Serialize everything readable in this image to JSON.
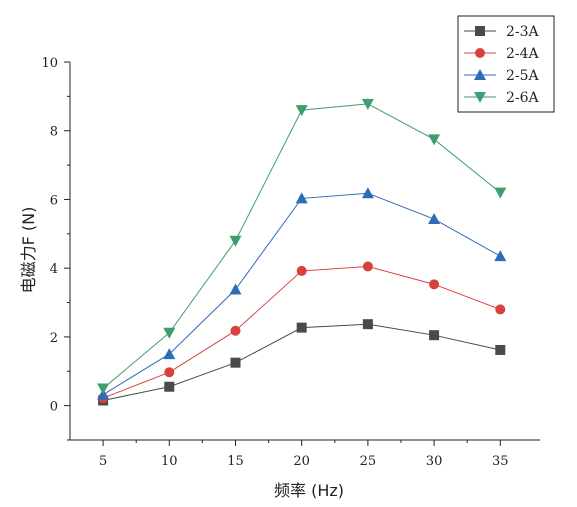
{
  "chart_data": {
    "type": "line",
    "xlabel": "频率 (Hz)",
    "ylabel": "电磁力F (N)",
    "x": [
      5,
      10,
      15,
      20,
      25,
      30,
      35
    ],
    "xlim": [
      2.5,
      38
    ],
    "ylim": [
      -1,
      10
    ],
    "xticks": [
      5,
      10,
      15,
      20,
      25,
      30,
      35
    ],
    "yticks": [
      0,
      2,
      4,
      6,
      8,
      10
    ],
    "grid": false,
    "legend_position": "top-right",
    "series": [
      {
        "name": "2-3A",
        "marker": "square",
        "color": "#4a4a4a",
        "values": [
          0.15,
          0.55,
          1.25,
          2.27,
          2.37,
          2.05,
          1.62
        ]
      },
      {
        "name": "2-4A",
        "marker": "circle",
        "color": "#d9413f",
        "values": [
          0.22,
          0.97,
          2.18,
          3.92,
          4.05,
          3.53,
          2.8
        ]
      },
      {
        "name": "2-5A",
        "marker": "triangle-up",
        "color": "#2f6cb8",
        "values": [
          0.32,
          1.5,
          3.38,
          6.03,
          6.18,
          5.43,
          4.35
        ]
      },
      {
        "name": "2-6A",
        "marker": "triangle-down",
        "color": "#3d9e6e",
        "values": [
          0.5,
          2.12,
          4.8,
          8.6,
          8.78,
          7.75,
          6.2
        ]
      }
    ]
  }
}
